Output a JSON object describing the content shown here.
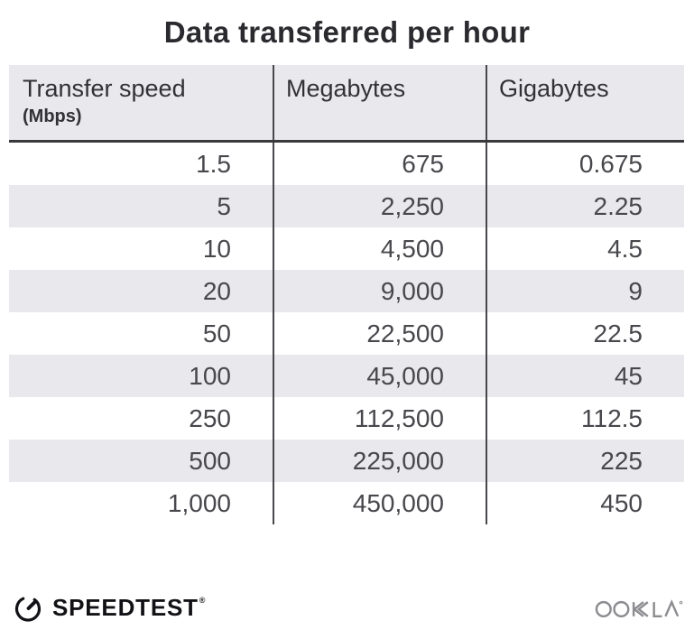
{
  "title": "Data transferred per hour",
  "table": {
    "headers": [
      {
        "label": "Transfer speed",
        "sublabel": "(Mbps)"
      },
      {
        "label": "Megabytes",
        "sublabel": ""
      },
      {
        "label": "Gigabytes",
        "sublabel": ""
      }
    ],
    "rows": [
      [
        "1.5",
        "675",
        "0.675"
      ],
      [
        "5",
        "2,250",
        "2.25"
      ],
      [
        "10",
        "4,500",
        "4.5"
      ],
      [
        "20",
        "9,000",
        "9"
      ],
      [
        "50",
        "22,500",
        "22.5"
      ],
      [
        "100",
        "45,000",
        "45"
      ],
      [
        "250",
        "112,500",
        "112.5"
      ],
      [
        "500",
        "225,000",
        "225"
      ],
      [
        "1,000",
        "450,000",
        "450"
      ]
    ]
  },
  "footer": {
    "brand": "SPEEDTEST",
    "brand_mark": "®",
    "attribution": "OOKLA",
    "gauge_icon": "speedtest-gauge-icon",
    "ookla_logo": "ookla-logo"
  },
  "colors": {
    "background": "#ffffff",
    "stripe": "#e9e8ec",
    "header_bg": "#e9e8ec",
    "divider": "#48474c",
    "header_underline": "#39383d",
    "title_text": "#2b2a2f",
    "cell_text": "#48474c",
    "brand_text": "#121216",
    "ookla_gray": "#8d8c90"
  },
  "chart_data": {
    "type": "table",
    "title": "Data transferred per hour",
    "columns": [
      "Transfer speed (Mbps)",
      "Megabytes",
      "Gigabytes"
    ],
    "rows": [
      [
        1.5,
        675,
        0.675
      ],
      [
        5,
        2250,
        2.25
      ],
      [
        10,
        4500,
        4.5
      ],
      [
        20,
        9000,
        9
      ],
      [
        50,
        22500,
        22.5
      ],
      [
        100,
        45000,
        45
      ],
      [
        250,
        112500,
        112.5
      ],
      [
        500,
        225000,
        225
      ],
      [
        1000,
        450000,
        450
      ]
    ],
    "layout": {
      "zebra_striping": true,
      "column_dividers": true,
      "values_right_aligned": true
    }
  }
}
